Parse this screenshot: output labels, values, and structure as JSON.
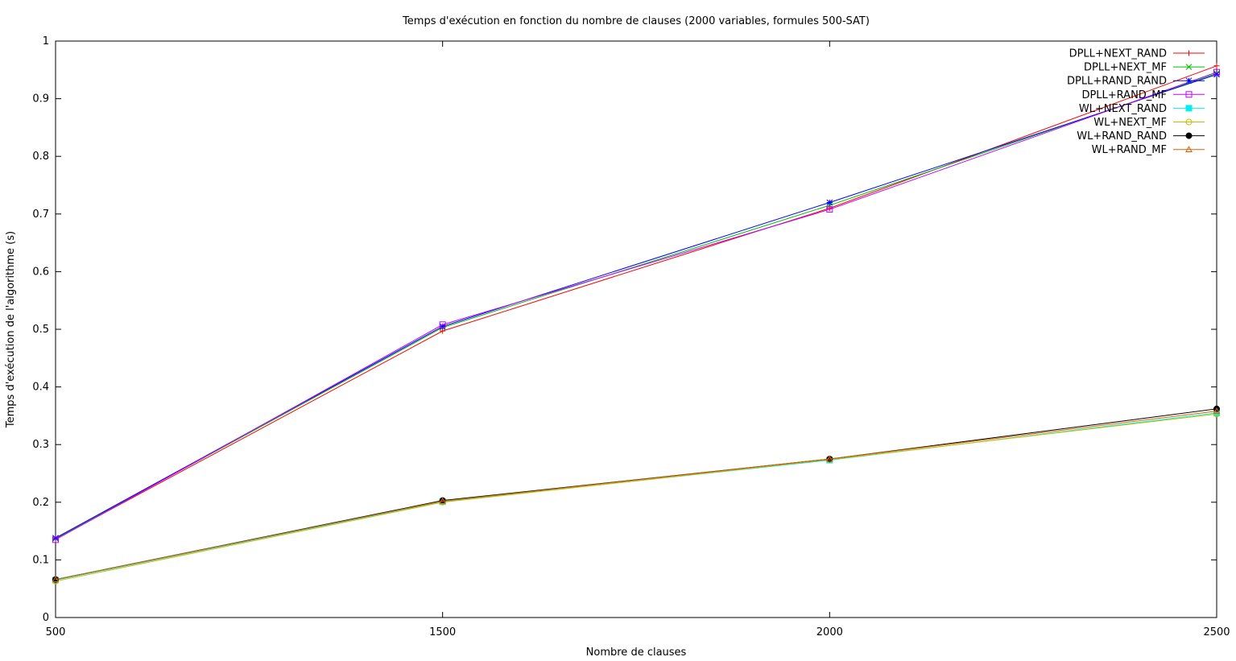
{
  "chart_data": {
    "type": "line",
    "title": "Temps d'exécution en fonction du nombre de clauses (2000 variables, formules 500-SAT)",
    "xlabel": "Nombre de clauses",
    "ylabel": "Temps d'exécution de l'algorithme (s)",
    "x": [
      500,
      1500,
      2000,
      2500
    ],
    "xticks": [
      "500",
      "1500",
      "2000",
      "2500"
    ],
    "yticks": [
      "0",
      "0.1",
      "0.2",
      "0.3",
      "0.4",
      "0.5",
      "0.6",
      "0.7",
      "0.8",
      "0.9",
      "1"
    ],
    "ylim": [
      0,
      1
    ],
    "grid": false,
    "legend_position": "top-right",
    "series": [
      {
        "name": "DPLL+NEXT_RAND",
        "color": "#ff0000",
        "marker": "plus",
        "values": [
          0.136,
          0.497,
          0.71,
          0.957
        ]
      },
      {
        "name": "DPLL+NEXT_MF",
        "color": "#00c000",
        "marker": "cross",
        "values": [
          0.137,
          0.503,
          0.715,
          0.944
        ]
      },
      {
        "name": "DPLL+RAND_RAND",
        "color": "#0000ff",
        "marker": "star",
        "values": [
          0.138,
          0.505,
          0.72,
          0.942
        ]
      },
      {
        "name": "DPLL+RAND_MF",
        "color": "#c000ff",
        "marker": "square",
        "values": [
          0.135,
          0.508,
          0.708,
          0.946
        ]
      },
      {
        "name": "WL+NEXT_RAND",
        "color": "#00eeee",
        "marker": "filled-square",
        "values": [
          0.065,
          0.201,
          0.273,
          0.355
        ]
      },
      {
        "name": "WL+NEXT_MF",
        "color": "#c0c000",
        "marker": "circle",
        "values": [
          0.063,
          0.2,
          0.274,
          0.353
        ]
      },
      {
        "name": "WL+RAND_RAND",
        "color": "#000000",
        "marker": "filled-circle",
        "values": [
          0.066,
          0.203,
          0.275,
          0.362
        ]
      },
      {
        "name": "WL+RAND_MF",
        "color": "#e06000",
        "marker": "triangle",
        "values": [
          0.066,
          0.202,
          0.275,
          0.358
        ]
      }
    ]
  }
}
